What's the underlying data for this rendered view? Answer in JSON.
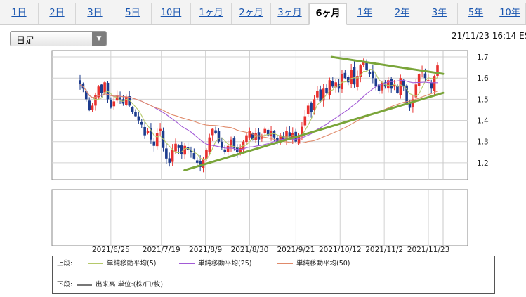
{
  "tabs": [
    {
      "label": "1日",
      "active": false
    },
    {
      "label": "2日",
      "active": false
    },
    {
      "label": "3日",
      "active": false
    },
    {
      "label": "5日",
      "active": false
    },
    {
      "label": "10日",
      "active": false
    },
    {
      "label": "1ヶ月",
      "active": false
    },
    {
      "label": "2ヶ月",
      "active": false
    },
    {
      "label": "3ヶ月",
      "active": false
    },
    {
      "label": "6ヶ月",
      "active": true
    },
    {
      "label": "1年",
      "active": false
    },
    {
      "label": "2年",
      "active": false
    },
    {
      "label": "3年",
      "active": false
    },
    {
      "label": "5年",
      "active": false
    },
    {
      "label": "10年",
      "active": false
    }
  ],
  "period_select": {
    "value": "日足"
  },
  "timestamp": "21/11/23 16:14 ES",
  "legend": {
    "upper_label": "上段:",
    "lower_label": "下段:",
    "ma": [
      {
        "name": "単純移動平均(5)",
        "color": "#b5c96a"
      },
      {
        "name": "単純移動平均(25)",
        "color": "#a25ad6"
      },
      {
        "name": "単純移動平均(50)",
        "color": "#e08a6a"
      }
    ],
    "volume": "出来高 単位:(株/口/枚)"
  },
  "colors": {
    "up": "#e8312f",
    "down": "#1d3c8e",
    "trend": "#7aa53a"
  },
  "chart_data": {
    "type": "candlestick",
    "x_ticks": [
      "2021/6/25",
      "2021/7/19",
      "2021/8/9",
      "2021/8/30",
      "2021/9/21",
      "2021/10/12",
      "2021/11/2",
      "2021/11/23"
    ],
    "y_ticks": [
      1.2,
      1.3,
      1.4,
      1.5,
      1.6,
      1.7
    ],
    "ylim": [
      1.12,
      1.73
    ],
    "grid": true,
    "start_date": "2021-05-28",
    "closes": [
      1.57,
      1.55,
      1.5,
      1.45,
      1.47,
      1.52,
      1.56,
      1.53,
      1.58,
      1.5,
      1.46,
      1.49,
      1.52,
      1.5,
      1.48,
      1.51,
      1.47,
      1.44,
      1.42,
      1.4,
      1.38,
      1.33,
      1.35,
      1.31,
      1.28,
      1.34,
      1.36,
      1.27,
      1.22,
      1.2,
      1.26,
      1.29,
      1.27,
      1.24,
      1.28,
      1.26,
      1.25,
      1.22,
      1.2,
      1.18,
      1.22,
      1.26,
      1.32,
      1.36,
      1.34,
      1.3,
      1.27,
      1.25,
      1.28,
      1.31,
      1.27,
      1.25,
      1.27,
      1.3,
      1.33,
      1.35,
      1.31,
      1.34,
      1.31,
      1.33,
      1.36,
      1.33,
      1.35,
      1.32,
      1.3,
      1.33,
      1.31,
      1.35,
      1.32,
      1.34,
      1.3,
      1.33,
      1.37,
      1.42,
      1.47,
      1.44,
      1.5,
      1.54,
      1.49,
      1.55,
      1.53,
      1.59,
      1.56,
      1.58,
      1.55,
      1.62,
      1.6,
      1.58,
      1.64,
      1.57,
      1.61,
      1.66,
      1.68,
      1.64,
      1.62,
      1.6,
      1.56,
      1.54,
      1.58,
      1.56,
      1.59,
      1.55,
      1.57,
      1.53,
      1.6,
      1.56,
      1.48,
      1.46,
      1.5,
      1.57,
      1.62,
      1.63,
      1.6,
      1.59,
      1.55,
      1.61,
      1.66
    ],
    "moving_averages": [
      {
        "name": "単純移動平均(5)",
        "window": 5
      },
      {
        "name": "単純移動平均(25)",
        "window": 25
      },
      {
        "name": "単純移動平均(50)",
        "window": 50
      }
    ],
    "trendlines": [
      {
        "from": [
          "2021-07-30",
          1.165
        ],
        "to": [
          "2021-11-30",
          1.53
        ]
      },
      {
        "from": [
          "2021-10-08",
          1.7
        ],
        "to": [
          "2021-11-30",
          1.62
        ]
      }
    ]
  }
}
